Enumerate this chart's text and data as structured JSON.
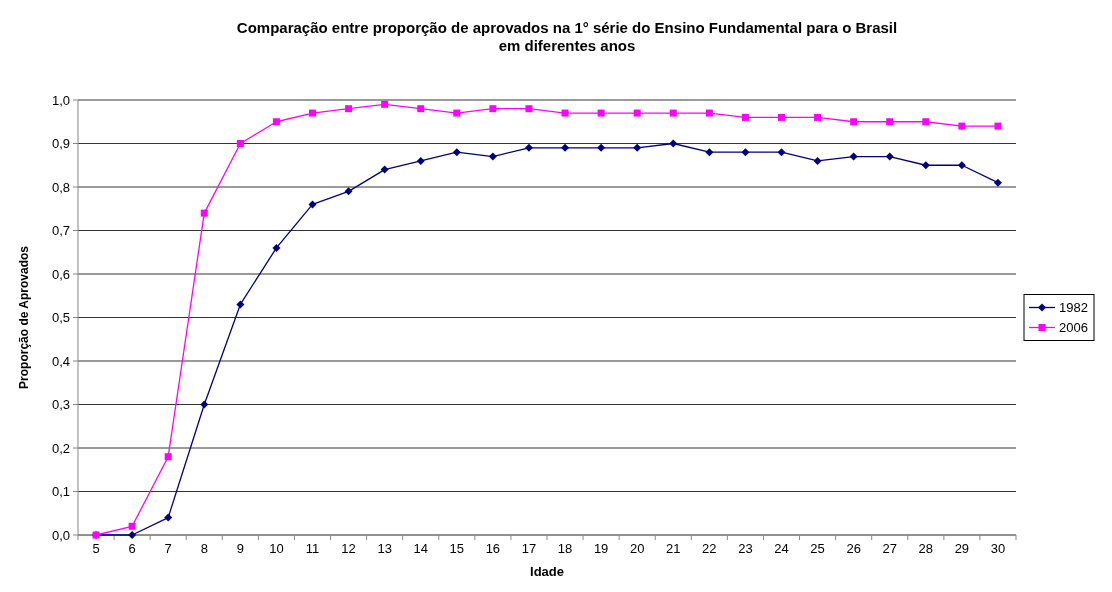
{
  "chart_data": {
    "type": "line",
    "title": "Comparação entre proporção de aprovados na 1° série do Ensino Fundamental para o Brasil em diferentes anos",
    "xlabel": "Idade",
    "ylabel": "Proporção de Aprovados",
    "categories": [
      "5",
      "6",
      "7",
      "8",
      "9",
      "10",
      "11",
      "12",
      "13",
      "14",
      "15",
      "16",
      "17",
      "18",
      "19",
      "20",
      "21",
      "22",
      "23",
      "24",
      "25",
      "26",
      "27",
      "28",
      "29",
      "30"
    ],
    "series": [
      {
        "name": "1982",
        "color": "#000080",
        "marker": "diamond",
        "values": [
          0,
          0,
          0.04,
          0.3,
          0.53,
          0.66,
          0.76,
          0.79,
          0.84,
          0.86,
          0.88,
          0.87,
          0.89,
          0.89,
          0.89,
          0.89,
          0.9,
          0.88,
          0.88,
          0.88,
          0.86,
          0.87,
          0.87,
          0.85,
          0.85,
          0.81
        ]
      },
      {
        "name": "2006",
        "color": "#ff00ff",
        "marker": "square",
        "values": [
          0,
          0.02,
          0.18,
          0.74,
          0.9,
          0.95,
          0.97,
          0.98,
          0.99,
          0.98,
          0.97,
          0.98,
          0.98,
          0.97,
          0.97,
          0.97,
          0.97,
          0.97,
          0.96,
          0.96,
          0.96,
          0.95,
          0.95,
          0.95,
          0.94,
          0.94
        ]
      }
    ],
    "ylim": [
      0,
      1
    ],
    "yticks": [
      {
        "value": 0,
        "label": "0,0"
      },
      {
        "value": 0.1,
        "label": "0,1"
      },
      {
        "value": 0.2,
        "label": "0,2"
      },
      {
        "value": 0.3,
        "label": "0,3"
      },
      {
        "value": 0.4,
        "label": "0,4"
      },
      {
        "value": 0.5,
        "label": "0,5"
      },
      {
        "value": 0.6,
        "label": "0,6"
      },
      {
        "value": 0.7,
        "label": "0,7"
      },
      {
        "value": 0.8,
        "label": "0,8"
      },
      {
        "value": 0.9,
        "label": "0,9"
      },
      {
        "value": 1,
        "label": "1,0"
      }
    ],
    "grid": "y",
    "legend": "right"
  }
}
